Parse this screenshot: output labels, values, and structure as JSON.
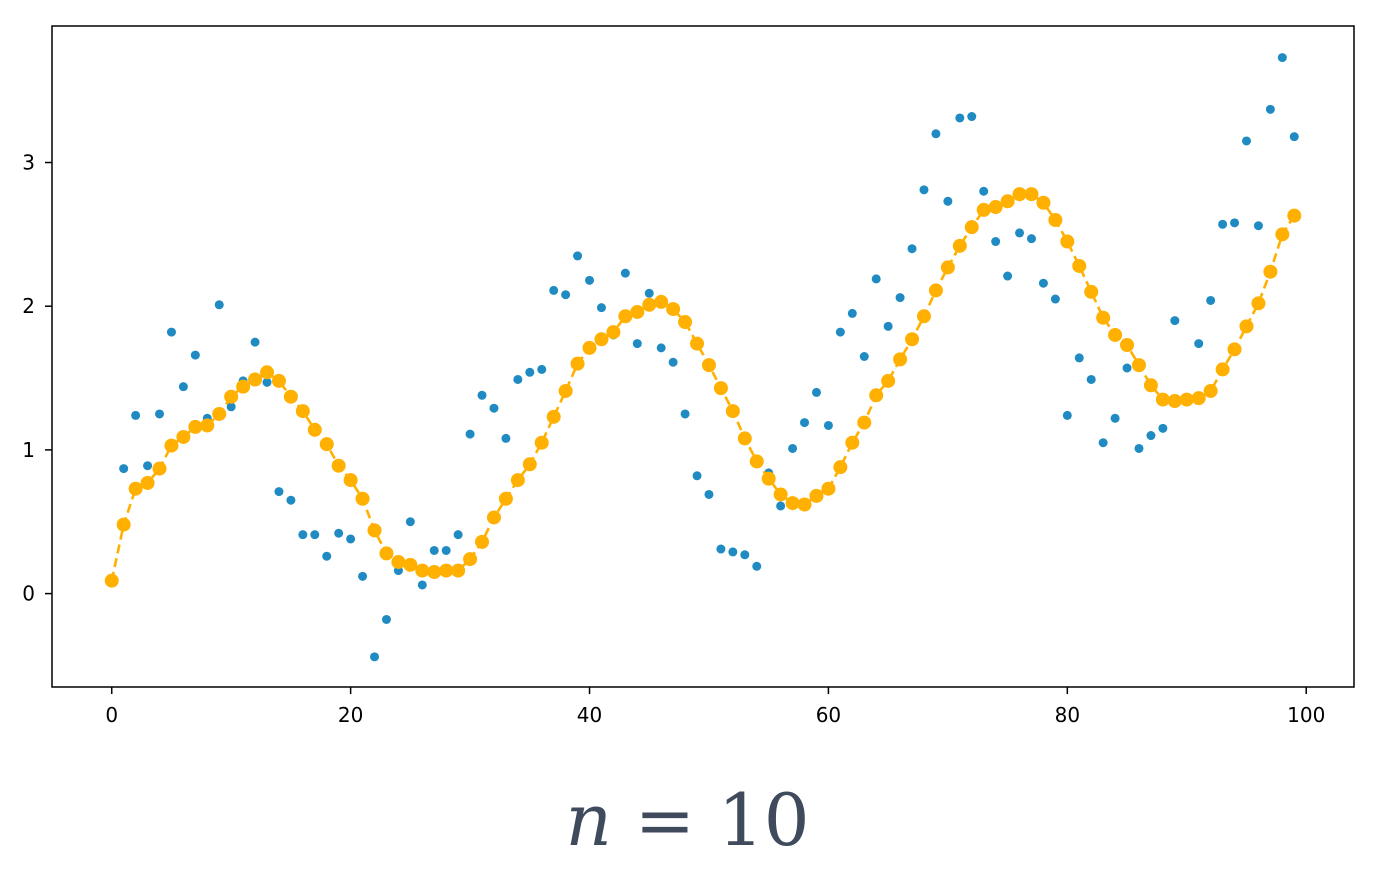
{
  "chart_data": {
    "type": "scatter",
    "title": "",
    "xlabel": "",
    "ylabel": "",
    "xlim": [
      -5,
      104
    ],
    "ylim": [
      -0.65,
      3.95
    ],
    "x_ticks": [
      0,
      20,
      40,
      60,
      80,
      100
    ],
    "y_ticks": [
      0,
      1,
      2,
      3
    ],
    "grid": false,
    "colors": {
      "raw": "#1f8bc2",
      "smoothed": "#ffb000"
    },
    "series": [
      {
        "kind": "scatter",
        "values": [
          0.09,
          0.87,
          1.24,
          0.89,
          1.25,
          1.82,
          1.44,
          1.66,
          1.22,
          2.01,
          1.3,
          1.48,
          1.75,
          1.47,
          0.71,
          0.65,
          0.41,
          0.41,
          0.26,
          0.42,
          0.38,
          0.12,
          -0.44,
          -0.18,
          0.16,
          0.5,
          0.06,
          0.3,
          0.3,
          0.41,
          1.11,
          1.38,
          1.29,
          1.08,
          1.49,
          1.54,
          1.56,
          2.11,
          2.08,
          2.35,
          2.18,
          1.99,
          1.8,
          2.23,
          1.74,
          2.09,
          1.71,
          1.61,
          1.25,
          0.82,
          0.69,
          0.31,
          0.29,
          0.27,
          0.19,
          0.84,
          0.61,
          1.01,
          1.19,
          1.4,
          1.17,
          1.82,
          1.95,
          1.65,
          2.19,
          1.86,
          2.06,
          2.4,
          2.81,
          3.2,
          2.73,
          3.31,
          3.32,
          2.8,
          2.45,
          2.21,
          2.51,
          2.47,
          2.16,
          2.05,
          1.24,
          1.64,
          1.49,
          1.05,
          1.22,
          1.57,
          1.01,
          1.1,
          1.15,
          1.9,
          1.35,
          1.74,
          2.04,
          2.57,
          2.58,
          3.15,
          2.56,
          3.37,
          3.73,
          3.18
        ]
      },
      {
        "kind": "line",
        "values": [
          0.09,
          0.48,
          0.73,
          0.77,
          0.87,
          1.03,
          1.09,
          1.16,
          1.17,
          1.25,
          1.37,
          1.44,
          1.49,
          1.54,
          1.48,
          1.37,
          1.27,
          1.14,
          1.04,
          0.89,
          0.79,
          0.66,
          0.44,
          0.28,
          0.22,
          0.2,
          0.16,
          0.15,
          0.16,
          0.16,
          0.24,
          0.36,
          0.53,
          0.66,
          0.79,
          0.9,
          1.05,
          1.23,
          1.41,
          1.6,
          1.71,
          1.77,
          1.82,
          1.93,
          1.96,
          2.01,
          2.03,
          1.98,
          1.89,
          1.74,
          1.59,
          1.43,
          1.27,
          1.08,
          0.92,
          0.8,
          0.69,
          0.63,
          0.62,
          0.68,
          0.73,
          0.88,
          1.05,
          1.19,
          1.38,
          1.48,
          1.63,
          1.77,
          1.93,
          2.11,
          2.27,
          2.42,
          2.55,
          2.67,
          2.69,
          2.73,
          2.78,
          2.78,
          2.72,
          2.6,
          2.45,
          2.28,
          2.1,
          1.92,
          1.8,
          1.73,
          1.59,
          1.45,
          1.35,
          1.34,
          1.35,
          1.36,
          1.41,
          1.56,
          1.7,
          1.86,
          2.02,
          2.24,
          2.5,
          2.63
        ]
      }
    ]
  },
  "caption": {
    "variable": "n",
    "operator": "=",
    "value": "10"
  }
}
